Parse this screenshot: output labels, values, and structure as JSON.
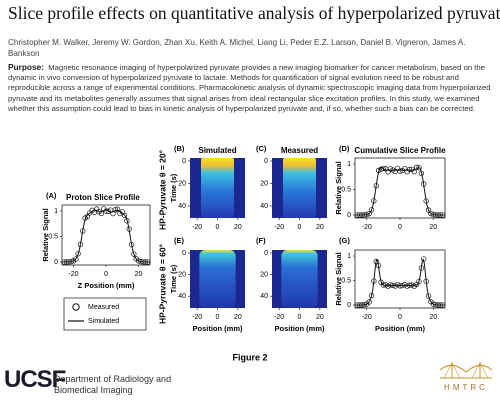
{
  "header": {
    "title": "Slice profile effects on quantitative analysis of hyperpolarized pyruvate",
    "authors": "Christopher M. Walker, Jeremy W. Gordon, Zhan Xu, Keith A. Michel, Liang Li, Peder E.Z. Larson, Daniel B. Vigneron, James A. Bankson",
    "purpose_label": "Purpose:",
    "purpose_text": "Magnetic resonance imaging of hyperpolarized pyruvate provides a new imaging biomarker for cancer metabolism, based on the dynamic in vivo conversion of hyperpolarized pyruvate to lactate. Methods for quantification of signal evolution need to be robust and reproducible across a range of experimental conditions. Pharmacokinetic analysis of dynamic spectroscopic imaging data from hyperpolarized pyruvate and its metabolites generally assumes that signal arises from ideal rectangular slice excitation profiles. In this study, we examined whether this assumption could lead to bias in kinetic analysis of hyperpolarized pyruvate and, if so, whether such a bias can be corrected."
  },
  "figure": {
    "caption": "Figure 2",
    "row_labels": [
      "HP-Pyruvate θ = 20°",
      "HP-Pyruvate θ = 60°"
    ],
    "panels": [
      {
        "id": "(A)",
        "title": "Proton Slice Profile",
        "ylabel": "Relative Signal",
        "xlabel": "Z Position (mm)",
        "yticks": [
          "1",
          "0.5",
          "0"
        ],
        "xticks": [
          "-20",
          "0",
          "20"
        ],
        "legend": [
          "Measured",
          "Simulated"
        ]
      },
      {
        "id": "(B)",
        "title": "Simulated",
        "ylabel": "Time (s)",
        "yticks": [
          "0",
          "20",
          "40"
        ],
        "xticks": [
          "-20",
          "0",
          "20"
        ]
      },
      {
        "id": "(C)",
        "title": "Measured",
        "yticks": [
          "0",
          "20",
          "40"
        ],
        "xticks": [
          "-20",
          "0",
          "20"
        ]
      },
      {
        "id": "(D)",
        "title": "Cumulative Slice Profile",
        "ylabel": "Relative Signal",
        "yticks": [
          "1",
          "0.5",
          "0"
        ],
        "xticks": [
          "-20",
          "0",
          "20"
        ]
      },
      {
        "id": "(E)",
        "ylabel": "Time (s)",
        "xlabel": "Position (mm)",
        "yticks": [
          "0",
          "20",
          "40"
        ],
        "xticks": [
          "-20",
          "0",
          "20"
        ]
      },
      {
        "id": "(F)",
        "xlabel": "Position (mm)",
        "yticks": [
          "0",
          "20",
          "40"
        ],
        "xticks": [
          "-20",
          "0",
          "20"
        ]
      },
      {
        "id": "(G)",
        "ylabel": "Relative Signal",
        "xlabel": "Position (mm)",
        "yticks": [
          "1",
          "0.5",
          "0"
        ],
        "xticks": [
          "-20",
          "0",
          "20"
        ]
      }
    ]
  },
  "footer": {
    "institution": "UCSF",
    "department": "Department of Radiology and Biomedical Imaging",
    "center_logo": "HMTRC"
  }
}
